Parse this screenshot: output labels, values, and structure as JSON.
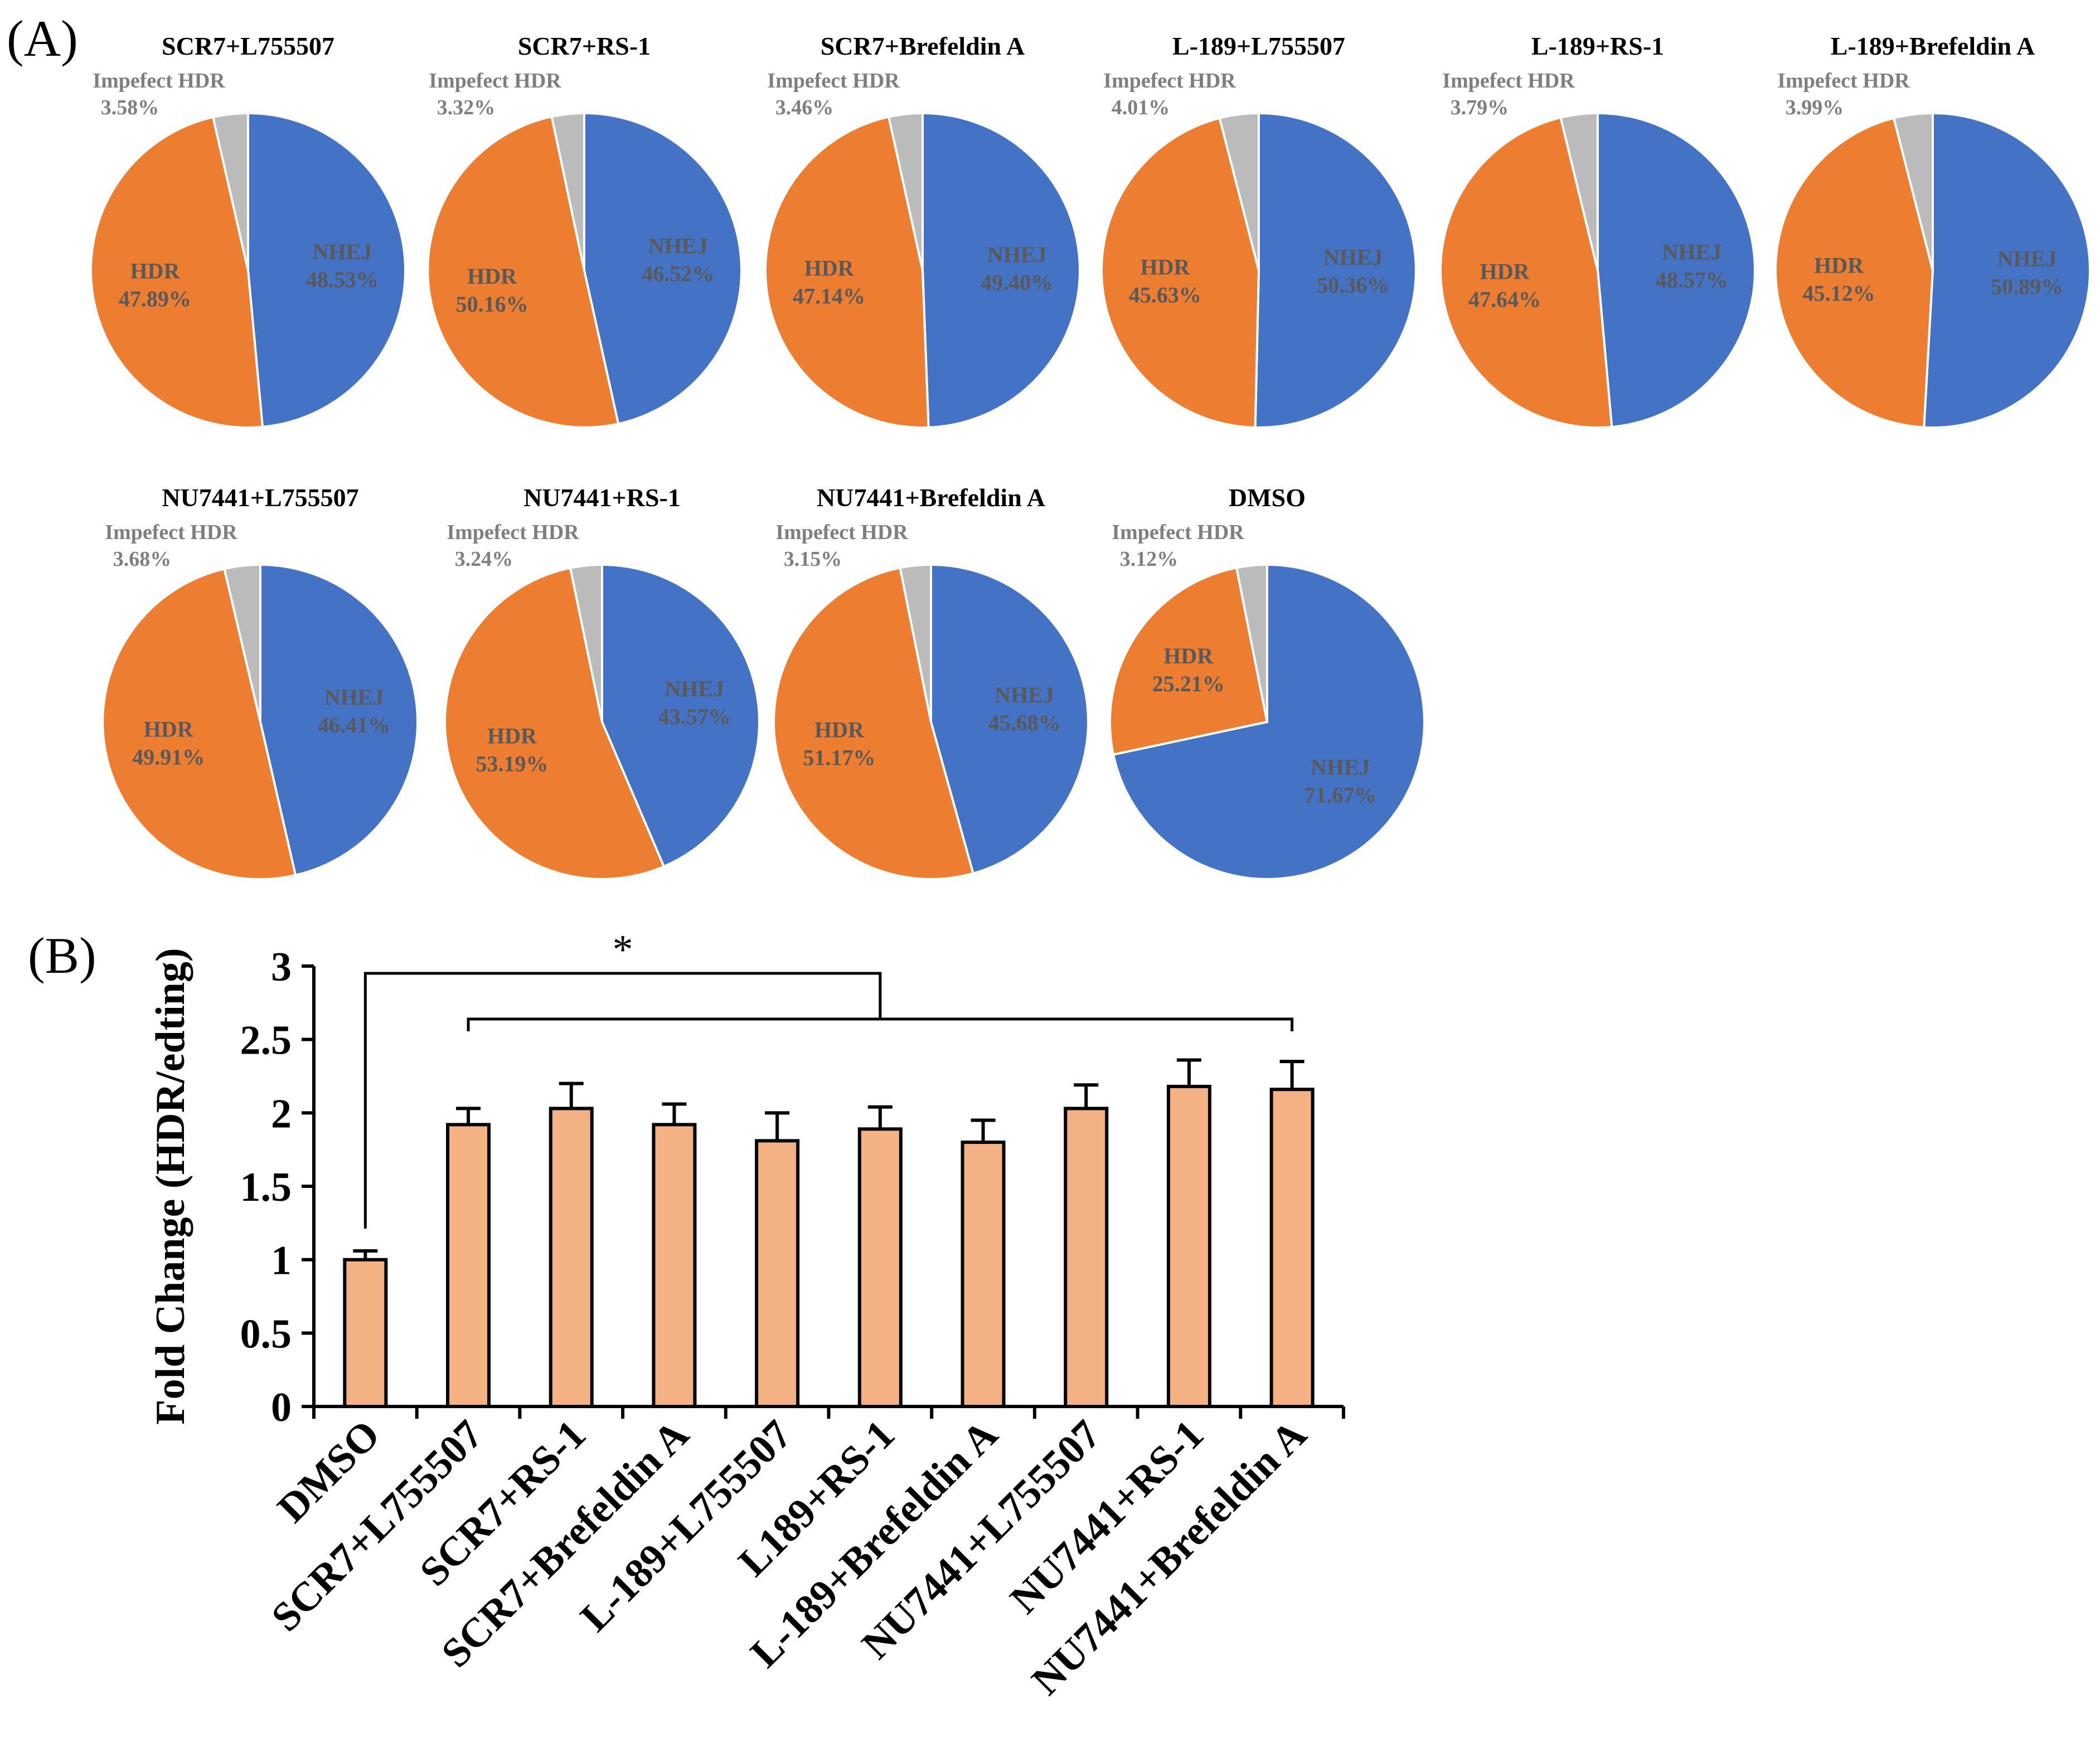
{
  "panels": {
    "a_label": "(A)",
    "b_label": "(B)"
  },
  "colors": {
    "nhej": "#4472C4",
    "hdr": "#ED7D31",
    "impefect": "#BBBBBB",
    "bar_fill": "#F4B183",
    "pie_label": "#595959",
    "impefect_label": "#7F7F7F",
    "axis": "#000000"
  },
  "chart_data": [
    {
      "type": "pie",
      "panel": "A",
      "slice_labels": {
        "nhej": "NHEJ",
        "hdr": "HDR",
        "impefect": "Impefect HDR"
      },
      "charts": [
        {
          "title": "SCR7+L755507",
          "nhej": 48.53,
          "hdr": 47.89,
          "impefect": 3.58,
          "nhej_text": "48.53%",
          "hdr_text": "47.89%",
          "impefect_text": "3.58%"
        },
        {
          "title": "SCR7+RS-1",
          "nhej": 46.52,
          "hdr": 50.16,
          "impefect": 3.32,
          "nhej_text": "46.52%",
          "hdr_text": "50.16%",
          "impefect_text": "3.32%"
        },
        {
          "title": "SCR7+Brefeldin A",
          "nhej": 49.4,
          "hdr": 47.14,
          "impefect": 3.46,
          "nhej_text": "49.40%",
          "hdr_text": "47.14%",
          "impefect_text": "3.46%"
        },
        {
          "title": "L-189+L755507",
          "nhej": 50.36,
          "hdr": 45.63,
          "impefect": 4.01,
          "nhej_text": "50.36%",
          "hdr_text": "45.63%",
          "impefect_text": "4.01%"
        },
        {
          "title": "L-189+RS-1",
          "nhej": 48.57,
          "hdr": 47.64,
          "impefect": 3.79,
          "nhej_text": "48.57%",
          "hdr_text": "47.64%",
          "impefect_text": "3.79%"
        },
        {
          "title": "L-189+Brefeldin A",
          "nhej": 50.89,
          "hdr": 45.12,
          "impefect": 3.99,
          "nhej_text": "50.89%",
          "hdr_text": "45.12%",
          "impefect_text": "3.99%"
        },
        {
          "title": "NU7441+L755507",
          "nhej": 46.41,
          "hdr": 49.91,
          "impefect": 3.68,
          "nhej_text": "46.41%",
          "hdr_text": "49.91%",
          "impefect_text": "3.68%"
        },
        {
          "title": "NU7441+RS-1",
          "nhej": 43.57,
          "hdr": 53.19,
          "impefect": 3.24,
          "nhej_text": "43.57%",
          "hdr_text": "53.19%",
          "impefect_text": "3.24%"
        },
        {
          "title": "NU7441+Brefeldin A",
          "nhej": 45.68,
          "hdr": 51.17,
          "impefect": 3.15,
          "nhej_text": "45.68%",
          "hdr_text": "51.17%",
          "impefect_text": "3.15%"
        },
        {
          "title": "DMSO",
          "nhej": 71.67,
          "hdr": 25.21,
          "impefect": 3.12,
          "nhej_text": "71.67%",
          "hdr_text": "25.21%",
          "impefect_text": "3.12%"
        }
      ]
    },
    {
      "type": "bar",
      "panel": "B",
      "ylabel": "Fold Change (HDR/edting)",
      "ylim": [
        0,
        3
      ],
      "yticks": [
        0,
        0.5,
        1,
        1.5,
        2,
        2.5,
        3
      ],
      "ytick_labels": [
        "0",
        "0.5",
        "1",
        "1.5",
        "2",
        "2.5",
        "3"
      ],
      "categories": [
        "DMSO",
        "SCR7+L755507",
        "SCR7+RS-1",
        "SCR7+Brefeldin A",
        "L-189+L755507",
        "L189+RS-1",
        "L-189+Brefeldin A",
        "NU7441+L755507",
        "NU7441+RS-1",
        "NU7441+Brefeldin A"
      ],
      "values": [
        1.0,
        1.92,
        2.03,
        1.92,
        1.81,
        1.89,
        1.8,
        2.03,
        2.18,
        2.16
      ],
      "errors": [
        0.06,
        0.11,
        0.17,
        0.14,
        0.19,
        0.15,
        0.15,
        0.16,
        0.18,
        0.19
      ],
      "significance": "*"
    }
  ]
}
